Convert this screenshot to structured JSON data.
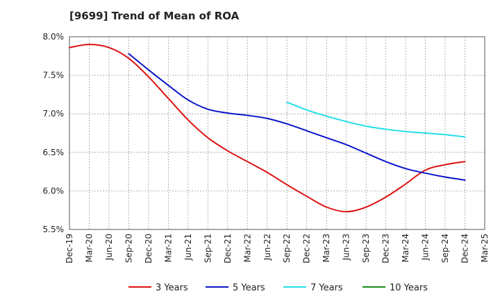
{
  "chart_data": {
    "type": "line",
    "title": "[9699]  Trend of Mean of ROA",
    "xlabel": "",
    "ylabel": "",
    "ylim": [
      5.5,
      8.0
    ],
    "y_ticks": [
      "5.5%",
      "6.0%",
      "6.5%",
      "7.0%",
      "7.5%",
      "8.0%"
    ],
    "y_tick_values": [
      5.5,
      6.0,
      6.5,
      7.0,
      7.5,
      8.0
    ],
    "x_tick_labels": [
      "Dec-19",
      "Mar-20",
      "Jun-20",
      "Sep-20",
      "Dec-20",
      "Mar-21",
      "Jun-21",
      "Sep-21",
      "Dec-21",
      "Mar-22",
      "Jun-22",
      "Sep-22",
      "Dec-22",
      "Mar-23",
      "Jun-23",
      "Sep-23",
      "Dec-23",
      "Mar-24",
      "Jun-24",
      "Sep-24",
      "Dec-24",
      "Mar-25"
    ],
    "grid": true,
    "legend_position": "bottom",
    "series": [
      {
        "name": "3 Years",
        "color": "#dd1111",
        "points": [
          [
            0,
            7.86
          ],
          [
            1,
            7.9
          ],
          [
            2,
            7.86
          ],
          [
            3,
            7.72
          ],
          [
            4,
            7.48
          ],
          [
            5,
            7.2
          ],
          [
            6,
            6.92
          ],
          [
            7,
            6.69
          ],
          [
            8,
            6.52
          ],
          [
            9,
            6.38
          ],
          [
            10,
            6.24
          ],
          [
            11,
            6.08
          ],
          [
            12,
            5.93
          ],
          [
            13,
            5.79
          ],
          [
            14,
            5.73
          ],
          [
            15,
            5.79
          ],
          [
            16,
            5.92
          ],
          [
            17,
            6.09
          ],
          [
            18,
            6.27
          ],
          [
            19,
            6.34
          ],
          [
            20,
            6.38
          ]
        ]
      },
      {
        "name": "5 Years",
        "color": "#0a14c8",
        "points": [
          [
            3,
            7.78
          ],
          [
            4,
            7.57
          ],
          [
            5,
            7.37
          ],
          [
            6,
            7.18
          ],
          [
            7,
            7.06
          ],
          [
            8,
            7.01
          ],
          [
            9,
            6.98
          ],
          [
            10,
            6.94
          ],
          [
            11,
            6.87
          ],
          [
            12,
            6.78
          ],
          [
            13,
            6.69
          ],
          [
            14,
            6.6
          ],
          [
            15,
            6.49
          ],
          [
            16,
            6.38
          ],
          [
            17,
            6.29
          ],
          [
            18,
            6.23
          ],
          [
            19,
            6.18
          ],
          [
            20,
            6.14
          ]
        ]
      },
      {
        "name": "7 Years",
        "color": "#22dde8",
        "points": [
          [
            11,
            7.15
          ],
          [
            12,
            7.05
          ],
          [
            13,
            6.97
          ],
          [
            14,
            6.9
          ],
          [
            15,
            6.84
          ],
          [
            16,
            6.8
          ],
          [
            17,
            6.77
          ],
          [
            18,
            6.75
          ],
          [
            19,
            6.73
          ],
          [
            20,
            6.7
          ]
        ]
      },
      {
        "name": "10 Years",
        "color": "#1a8c1a",
        "points": []
      }
    ]
  }
}
